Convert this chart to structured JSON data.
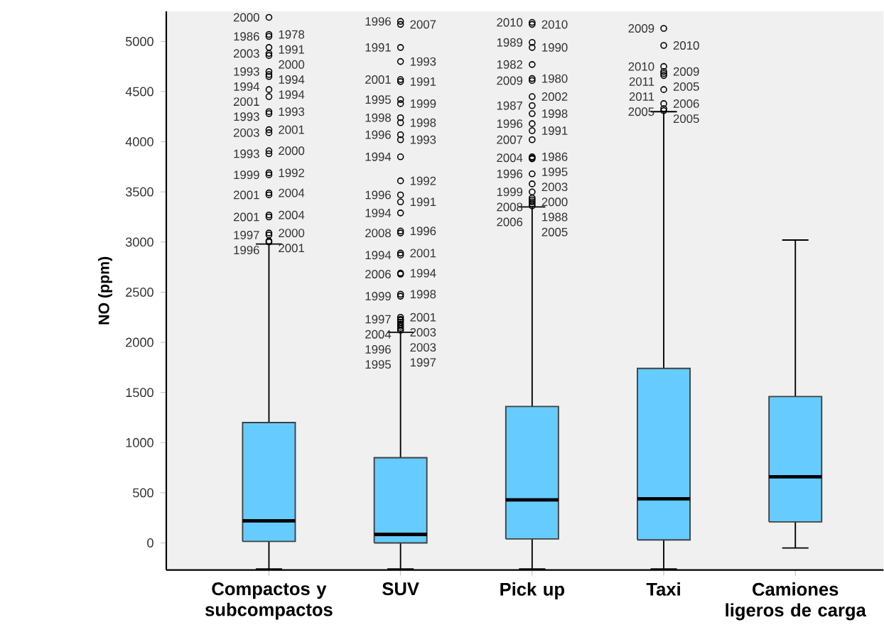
{
  "chart_data": {
    "type": "box",
    "ylabel": "NO (ppm)",
    "categories": [
      "Compactos y subcompactos",
      "SUV",
      "Pick up",
      "Taxi",
      "Camiones ligeros de carga"
    ],
    "color": "#66ccff",
    "boxes": [
      {
        "low": -260,
        "q1": 15,
        "median": 220,
        "q3": 1200,
        "high": 2980,
        "outliers": [
          5240,
          5070,
          5050,
          4940,
          4880,
          4860,
          4700,
          4670,
          4650,
          4520,
          4450,
          4300,
          4280,
          4120,
          4090,
          3910,
          3880,
          3690,
          3670,
          3490,
          3470,
          3270,
          3250,
          3090,
          3070,
          3010,
          3000
        ]
      },
      {
        "low": -260,
        "q1": 0,
        "median": 85,
        "q3": 850,
        "high": 2100,
        "outliers": [
          5200,
          5170,
          4940,
          4800,
          4620,
          4600,
          4420,
          4380,
          4240,
          4190,
          4070,
          4020,
          3850,
          3610,
          3470,
          3400,
          3290,
          3110,
          3090,
          2890,
          2870,
          2690,
          2680,
          2480,
          2460,
          2250,
          2230,
          2220,
          2200,
          2180,
          2160,
          2140,
          2120
        ]
      },
      {
        "low": -260,
        "q1": 40,
        "median": 430,
        "q3": 1360,
        "high": 3350,
        "outliers": [
          5190,
          5170,
          4990,
          4940,
          4770,
          4630,
          4610,
          4450,
          4360,
          4280,
          4180,
          4110,
          4020,
          3850,
          3840,
          3830,
          3680,
          3580,
          3500,
          3440,
          3420,
          3400,
          3380,
          3360
        ]
      },
      {
        "low": -260,
        "q1": 30,
        "median": 440,
        "q3": 1740,
        "high": 4300,
        "outliers": [
          5130,
          4960,
          4750,
          4700,
          4680,
          4660,
          4520,
          4380,
          4330,
          4310
        ]
      },
      {
        "low": -50,
        "q1": 210,
        "median": 660,
        "q3": 1460,
        "high": 3020
      }
    ],
    "ylim": [
      -270,
      5300
    ],
    "yticks": [
      0,
      500,
      1000,
      1500,
      2000,
      2500,
      3000,
      3500,
      4000,
      4500,
      5000
    ],
    "grid": false,
    "annotations": [
      "2000",
      "1978",
      "1986",
      "1991",
      "2003",
      "2000",
      "1993",
      "1994",
      "1994",
      "1994",
      "2001",
      "1993",
      "1993",
      "2001",
      "2003",
      "2000",
      "1993",
      "1992",
      "1999",
      "2004",
      "2001",
      "2004",
      "2001",
      "2000",
      "1997",
      "2001",
      "1996",
      "1996",
      "2007",
      "1991",
      "1993",
      "2001",
      "1991",
      "1995",
      "1999",
      "1998",
      "1998",
      "1996",
      "1993",
      "1994",
      "1992",
      "1996",
      "1991",
      "1994",
      "1996",
      "2008",
      "2001",
      "1994",
      "1994",
      "2006",
      "1998",
      "1999",
      "2001",
      "1997",
      "2003",
      "2004",
      "2003",
      "1996",
      "1997",
      "1995",
      "2010",
      "2010",
      "1989",
      "1990",
      "1982",
      "1980",
      "2009",
      "2002",
      "1987",
      "1998",
      "1996",
      "1991",
      "2007",
      "1986",
      "2004",
      "1995",
      "1996",
      "2003",
      "1999",
      "2000",
      "2008",
      "1988",
      "2006",
      "2005",
      "2009",
      "2010",
      "2010",
      "2009",
      "2011",
      "2005",
      "2011",
      "2006",
      "2005",
      "2005"
    ]
  }
}
